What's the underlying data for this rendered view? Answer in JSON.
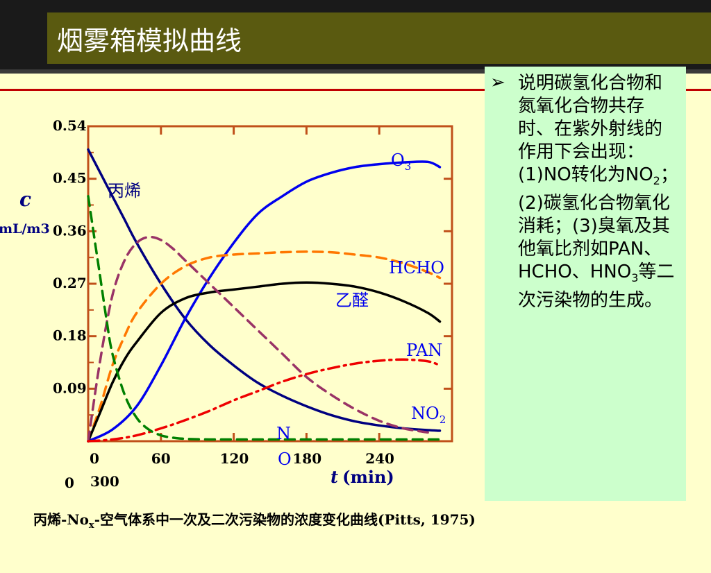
{
  "slide": {
    "title": "烟雾箱模拟曲线",
    "bullet_text": "说明碳氢化合物和氮氧化合物共存时、在紫外射线的作用下会出现：(1)NO转化为NO",
    "bullet_sub": "2",
    "bullet_text2": "；(2)碳氢化合物氧化消耗；(3)臭氧及其他氧比剂如PAN、HCHO、HNO",
    "bullet_sub2": "3",
    "bullet_text3": "等二次污染物的生成。",
    "caption_a": "丙烯-No",
    "caption_sub": "x",
    "caption_b": "-空气体系中一次及二次污染物的浓度变化曲线(Pitts, 1975)"
  },
  "chart_data": {
    "type": "line",
    "ylabel": "c",
    "yunit": "mL/m3",
    "xlabel": "t (min)",
    "x_ticks": [
      "0",
      "60",
      "120",
      "180",
      "240",
      "300"
    ],
    "y_ticks": [
      "0",
      "0.09",
      "0.18",
      "0.27",
      "0.36",
      "0.45",
      "0.54"
    ],
    "xlim": [
      0,
      300
    ],
    "ylim": [
      0,
      0.54
    ],
    "series": [
      {
        "name": "丙烯",
        "color": "#000080",
        "style": "solid",
        "x": [
          0,
          10,
          20,
          30,
          40,
          60,
          80,
          100,
          120,
          140,
          160,
          180,
          200,
          220,
          240,
          260,
          280,
          290
        ],
        "y": [
          0.5,
          0.46,
          0.42,
          0.38,
          0.34,
          0.27,
          0.21,
          0.165,
          0.13,
          0.1,
          0.078,
          0.06,
          0.045,
          0.034,
          0.027,
          0.022,
          0.019,
          0.018
        ]
      },
      {
        "name": "O3",
        "color": "#0000ee",
        "style": "solid",
        "x": [
          0,
          20,
          40,
          60,
          80,
          100,
          120,
          140,
          160,
          180,
          200,
          220,
          240,
          260,
          280,
          290
        ],
        "y": [
          0.0,
          0.02,
          0.06,
          0.13,
          0.21,
          0.28,
          0.34,
          0.39,
          0.42,
          0.445,
          0.46,
          0.47,
          0.475,
          0.478,
          0.479,
          0.47
        ]
      },
      {
        "name": "HCHO",
        "color": "#ff7700",
        "style": "dashed",
        "x": [
          0,
          10,
          20,
          30,
          40,
          60,
          80,
          100,
          120,
          140,
          160,
          180,
          200,
          220,
          240,
          260,
          280,
          290
        ],
        "y": [
          0.0,
          0.06,
          0.13,
          0.18,
          0.22,
          0.27,
          0.3,
          0.315,
          0.32,
          0.322,
          0.324,
          0.325,
          0.324,
          0.32,
          0.315,
          0.305,
          0.29,
          0.28
        ]
      },
      {
        "name": "乙醛",
        "color": "#000000",
        "style": "solid",
        "x": [
          0,
          10,
          20,
          30,
          40,
          60,
          80,
          100,
          120,
          140,
          160,
          180,
          200,
          220,
          240,
          260,
          280,
          290
        ],
        "y": [
          0.0,
          0.05,
          0.1,
          0.14,
          0.17,
          0.22,
          0.245,
          0.255,
          0.26,
          0.265,
          0.27,
          0.272,
          0.27,
          0.265,
          0.255,
          0.24,
          0.22,
          0.205
        ]
      },
      {
        "name": "NO2",
        "color": "#993366",
        "style": "dashed",
        "x": [
          0,
          10,
          20,
          30,
          40,
          50,
          60,
          70,
          80,
          100,
          120,
          140,
          160,
          180,
          200,
          220,
          240,
          260,
          280
        ],
        "y": [
          0.0,
          0.14,
          0.25,
          0.31,
          0.34,
          0.35,
          0.345,
          0.33,
          0.31,
          0.27,
          0.23,
          0.19,
          0.15,
          0.11,
          0.08,
          0.055,
          0.035,
          0.022,
          0.015
        ]
      },
      {
        "name": "PAN",
        "color": "#ee0000",
        "style": "dashdot",
        "x": [
          0,
          20,
          40,
          60,
          80,
          100,
          120,
          140,
          160,
          180,
          200,
          220,
          240,
          260,
          280,
          290
        ],
        "y": [
          0.0,
          0.003,
          0.01,
          0.022,
          0.036,
          0.052,
          0.07,
          0.086,
          0.102,
          0.115,
          0.125,
          0.133,
          0.138,
          0.14,
          0.137,
          0.13
        ]
      },
      {
        "name": "NO",
        "color": "#008000",
        "style": "dashed",
        "x": [
          0,
          5,
          10,
          15,
          20,
          30,
          40,
          50,
          60,
          70,
          80,
          100,
          120,
          160,
          200,
          250,
          290
        ],
        "y": [
          0.42,
          0.35,
          0.28,
          0.21,
          0.15,
          0.08,
          0.04,
          0.02,
          0.01,
          0.006,
          0.004,
          0.003,
          0.003,
          0.003,
          0.003,
          0.003,
          0.003
        ]
      }
    ],
    "annotations": [
      {
        "text": "丙烯",
        "color": "#000080"
      },
      {
        "text": "O",
        "sub": "3",
        "color": "#0000ee"
      },
      {
        "text": "HCHO",
        "color": "#0000ee"
      },
      {
        "text": "乙醛",
        "color": "#0000ee"
      },
      {
        "text": "PAN",
        "color": "#0000ee"
      },
      {
        "text": "NO",
        "sub": "2",
        "color": "#0000ee"
      },
      {
        "text": "N",
        "color": "#0000ee"
      },
      {
        "text": "O",
        "color": "#0000ee"
      }
    ]
  }
}
